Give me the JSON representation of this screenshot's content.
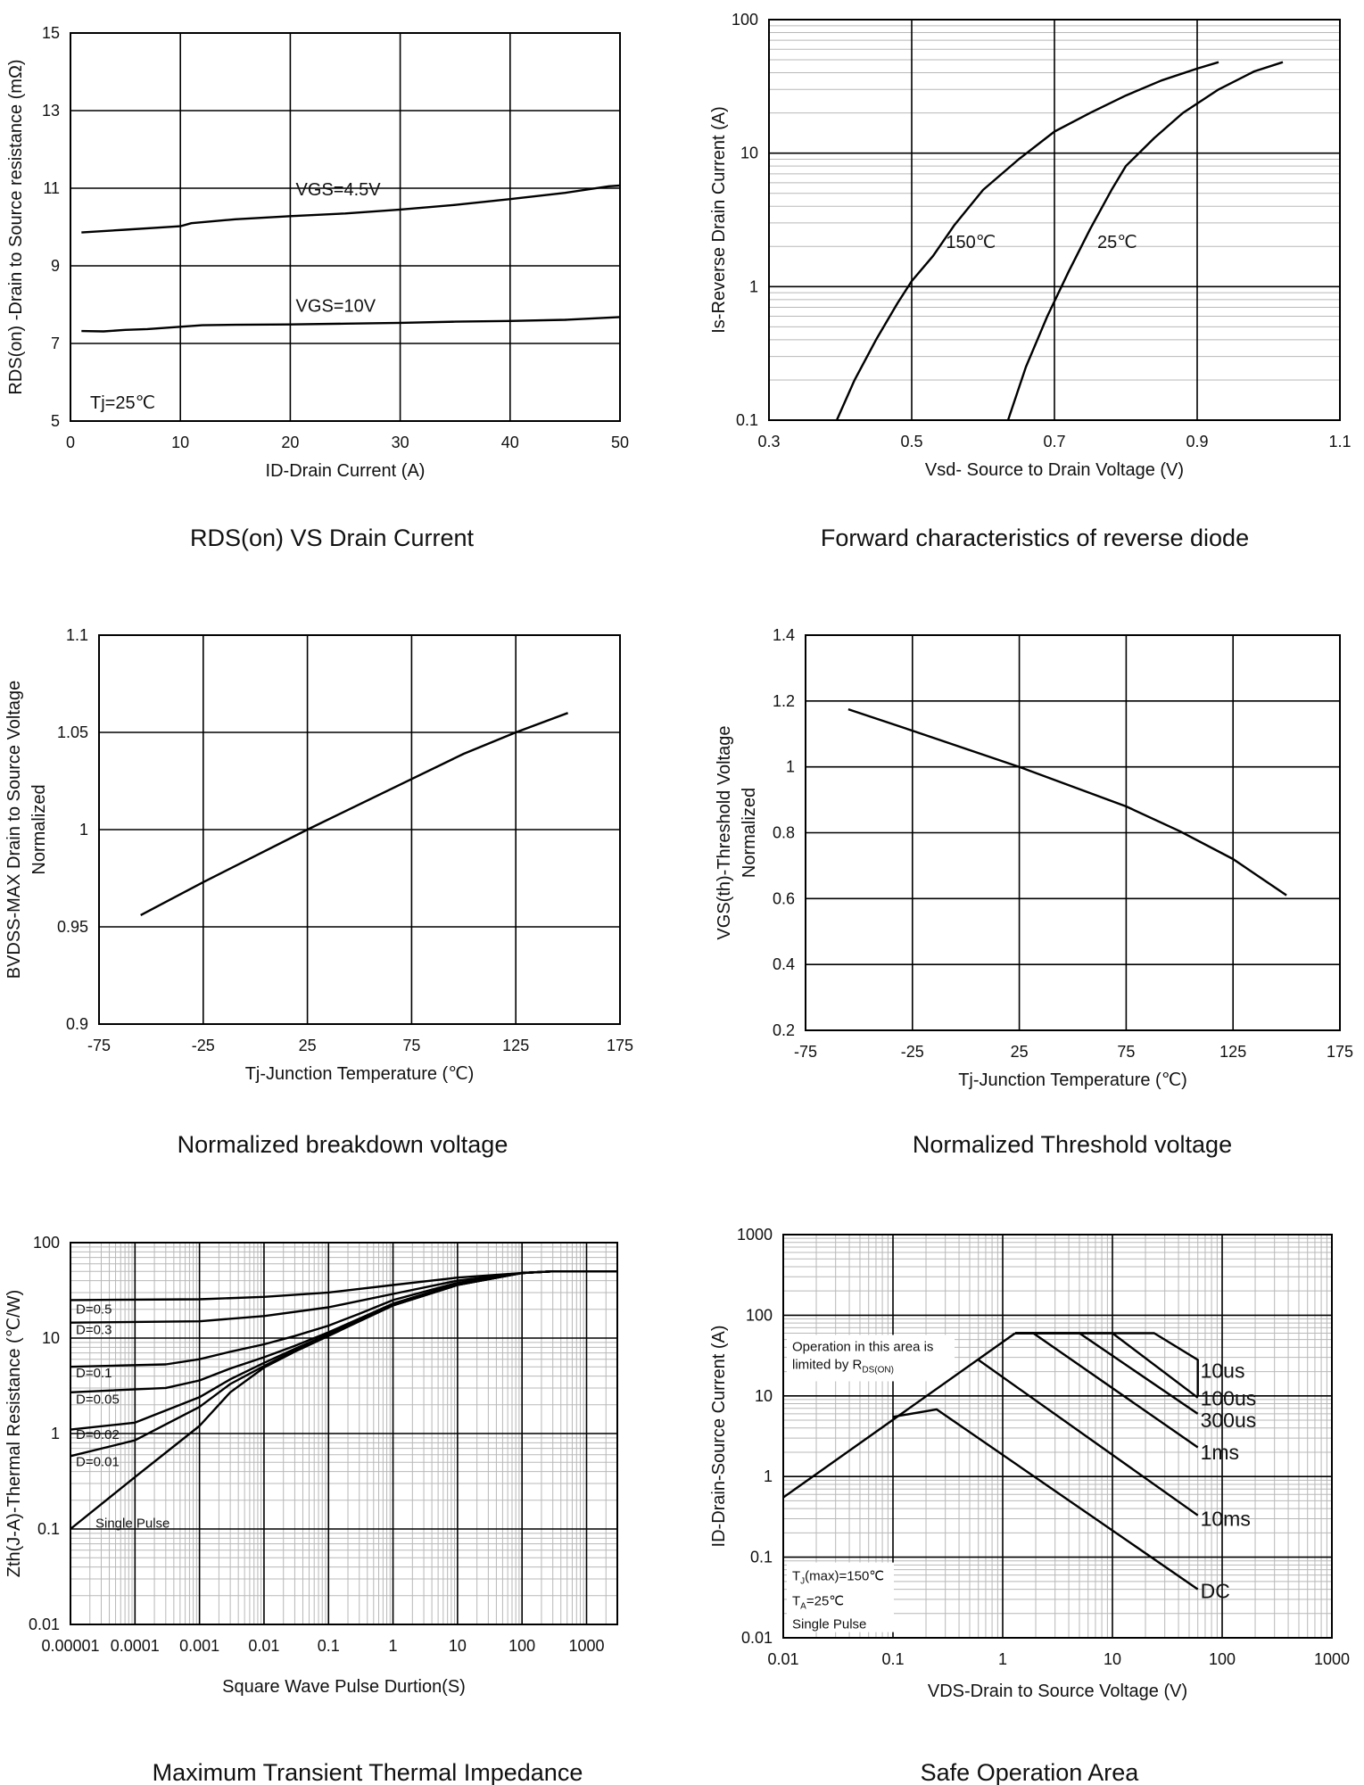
{
  "chart_data": [
    {
      "type": "line",
      "caption": "RDS(on) VS Drain Current",
      "xlabel": "ID-Drain Current (A)",
      "ylabel": "RDS(on) -Drain to Source resistance (mΩ)",
      "xlim": [
        0,
        50
      ],
      "ylim": [
        5,
        15
      ],
      "xticks": [
        "0",
        "10",
        "20",
        "30",
        "40",
        "50"
      ],
      "yticks": [
        "5",
        "7",
        "9",
        "11",
        "13",
        "15"
      ],
      "grid": true,
      "series": [
        {
          "name": "VGS=4.5V",
          "x": [
            1,
            5,
            10,
            11,
            15,
            20,
            25,
            30,
            35,
            40,
            45,
            49,
            50
          ],
          "y": [
            9.86,
            9.93,
            10.02,
            10.1,
            10.2,
            10.28,
            10.35,
            10.45,
            10.57,
            10.72,
            10.88,
            11.05,
            11.07
          ]
        },
        {
          "name": "VGS=10V",
          "x": [
            1,
            3,
            5,
            7,
            10,
            12,
            15,
            20,
            25,
            30,
            35,
            40,
            45,
            50
          ],
          "y": [
            7.32,
            7.31,
            7.35,
            7.37,
            7.43,
            7.47,
            7.48,
            7.49,
            7.51,
            7.53,
            7.56,
            7.58,
            7.61,
            7.68
          ]
        }
      ],
      "annotations": [
        "Tj=25℃"
      ]
    },
    {
      "type": "line",
      "caption": "Forward characteristics of reverse diode",
      "xlabel": "Vsd- Source to Drain Voltage (V)",
      "ylabel": "Is-Reverse Drain Current (A)",
      "xlim": [
        0.3,
        1.1
      ],
      "ylim": [
        0.1,
        100
      ],
      "yscale": "log",
      "xticks": [
        "0.3",
        "0.5",
        "0.7",
        "0.9",
        "1.1"
      ],
      "yticks": [
        "0.1",
        "1",
        "10",
        "100"
      ],
      "grid": true,
      "series": [
        {
          "name": "150℃",
          "x": [
            0.395,
            0.42,
            0.45,
            0.48,
            0.5,
            0.53,
            0.56,
            0.6,
            0.65,
            0.7,
            0.75,
            0.8,
            0.85,
            0.9,
            0.93
          ],
          "y": [
            0.1,
            0.2,
            0.4,
            0.75,
            1.1,
            1.7,
            2.9,
            5.3,
            9.0,
            14.5,
            20,
            27,
            35,
            43,
            48
          ]
        },
        {
          "name": "25℃",
          "x": [
            0.635,
            0.66,
            0.69,
            0.72,
            0.75,
            0.78,
            0.8,
            0.84,
            0.88,
            0.93,
            0.98,
            1.02
          ],
          "y": [
            0.1,
            0.25,
            0.6,
            1.3,
            2.7,
            5.3,
            8.0,
            13,
            20,
            30,
            41,
            48
          ]
        }
      ]
    },
    {
      "type": "line",
      "caption": "Normalized breakdown voltage",
      "xlabel": "Tj-Junction Temperature (℃)",
      "ylabel_lines": [
        "BVDSS-MAX Drain to Source Voltage",
        "Normalized"
      ],
      "xlim": [
        -75,
        175
      ],
      "ylim": [
        0.9,
        1.1
      ],
      "xticks": [
        "-75",
        "-25",
        "25",
        "75",
        "125",
        "175"
      ],
      "yticks": [
        "0.9",
        "0.95",
        "1",
        "1.05",
        "1.1"
      ],
      "grid": true,
      "series": [
        {
          "x": [
            -55,
            -25,
            25,
            75,
            100,
            125,
            150
          ],
          "y": [
            0.956,
            0.973,
            1.0,
            1.026,
            1.039,
            1.05,
            1.06
          ]
        }
      ]
    },
    {
      "type": "line",
      "caption": "Normalized Threshold voltage",
      "xlabel": "Tj-Junction Temperature (℃)",
      "ylabel_lines": [
        "VGS(th)-Threshold Voltage",
        "Normalized"
      ],
      "xlim": [
        -75,
        175
      ],
      "ylim": [
        0.2,
        1.4
      ],
      "xticks": [
        "-75",
        "-25",
        "25",
        "75",
        "125",
        "175"
      ],
      "yticks": [
        "0.2",
        "0.4",
        "0.6",
        "0.8",
        "1",
        "1.2",
        "1.4"
      ],
      "grid": true,
      "series": [
        {
          "x": [
            -55,
            -25,
            25,
            75,
            100,
            125,
            150
          ],
          "y": [
            1.175,
            1.11,
            1.0,
            0.88,
            0.805,
            0.72,
            0.61
          ]
        }
      ]
    },
    {
      "type": "line",
      "caption": "Maximum Transient Thermal Impedance",
      "xlabel": "Square Wave Pulse Durtion(S)",
      "ylabel": "Zth(J-A)-Thermal Resistance (℃/W)",
      "xlim": [
        1e-05,
        3000
      ],
      "ylim": [
        0.01,
        100
      ],
      "xscale": "log",
      "yscale": "log",
      "xticks": [
        "0.00001",
        "0.0001",
        "0.001",
        "0.01",
        "0.1",
        "1",
        "10",
        "100",
        "1000"
      ],
      "yticks": [
        "0.01",
        "0.1",
        "1",
        "10",
        "100"
      ],
      "grid": true,
      "series": [
        {
          "name": "D=0.5",
          "x": [
            1e-05,
            0.001,
            0.01,
            0.1,
            1,
            10,
            100,
            300,
            3000
          ],
          "y": [
            25,
            25.5,
            27,
            30,
            36,
            43,
            48,
            50,
            50
          ]
        },
        {
          "name": "D=0.3",
          "x": [
            1e-05,
            0.001,
            0.01,
            0.1,
            1,
            10,
            100,
            300,
            3000
          ],
          "y": [
            14.5,
            15,
            17,
            21,
            29,
            40,
            48,
            50,
            50
          ]
        },
        {
          "name": "D=0.1",
          "x": [
            1e-05,
            0.0003,
            0.001,
            0.003,
            0.01,
            0.03,
            0.1,
            0.3,
            1,
            10,
            100,
            300,
            3000
          ],
          "y": [
            5,
            5.3,
            6,
            7.2,
            8.6,
            10.5,
            13.5,
            18,
            25,
            38,
            48,
            50,
            50
          ]
        },
        {
          "name": "D=0.05",
          "x": [
            1e-05,
            0.0003,
            0.001,
            0.003,
            0.01,
            0.03,
            0.1,
            0.3,
            1,
            10,
            100,
            300,
            3000
          ],
          "y": [
            2.7,
            3.0,
            3.6,
            4.8,
            6.3,
            8.3,
            11.5,
            16,
            23,
            37,
            48,
            50,
            50
          ]
        },
        {
          "name": "D=0.02",
          "x": [
            1e-05,
            0.0001,
            0.001,
            0.003,
            0.01,
            0.03,
            0.1,
            0.3,
            1,
            10,
            100,
            300,
            3000
          ],
          "y": [
            1.1,
            1.3,
            2.4,
            3.7,
            5.5,
            7.7,
            11,
            15.5,
            22,
            36,
            48,
            50,
            50
          ]
        },
        {
          "name": "D=0.01",
          "x": [
            1e-05,
            0.0001,
            0.001,
            0.003,
            0.01,
            0.03,
            0.1,
            0.3,
            1,
            10,
            100,
            300,
            3000
          ],
          "y": [
            0.58,
            0.85,
            1.9,
            3.3,
            5.1,
            7.4,
            10.7,
            15,
            22,
            36,
            48,
            50,
            50
          ]
        },
        {
          "name": "Single Pulse",
          "x": [
            1e-05,
            0.0001,
            0.001,
            0.003,
            0.01,
            0.03,
            0.1,
            0.3,
            1,
            10,
            100,
            300,
            3000
          ],
          "y": [
            0.1,
            0.35,
            1.2,
            2.7,
            4.9,
            7.2,
            10.5,
            15,
            22,
            36,
            48,
            50,
            50
          ]
        }
      ]
    },
    {
      "type": "line",
      "caption": "Safe Operation Area",
      "xlabel": "VDS-Drain to Source Voltage (V)",
      "ylabel": "ID-Drain-Source Current (A)",
      "xlim": [
        0.01,
        1000
      ],
      "ylim": [
        0.01,
        1000
      ],
      "xscale": "log",
      "yscale": "log",
      "xticks": [
        "0.01",
        "0.1",
        "1",
        "10",
        "100",
        "1000"
      ],
      "yticks": [
        "0.01",
        "0.1",
        "1",
        "10",
        "100",
        "1000"
      ],
      "grid": true,
      "series": [
        {
          "name": "10us",
          "x": [
            1.3,
            24,
            60,
            60
          ],
          "y": [
            60,
            60,
            28,
            10
          ]
        },
        {
          "name": "100us",
          "x": [
            1.3,
            10,
            60
          ],
          "y": [
            60,
            60,
            9.5
          ]
        },
        {
          "name": "300us",
          "x": [
            1.3,
            5,
            60
          ],
          "y": [
            60,
            60,
            6
          ]
        },
        {
          "name": "1ms",
          "x": [
            1.3,
            1.9,
            60
          ],
          "y": [
            60,
            60,
            2.3
          ]
        },
        {
          "name": "10ms",
          "x": [
            0.6,
            60
          ],
          "y": [
            28,
            0.33
          ]
        },
        {
          "name": "DC",
          "x": [
            0.1,
            0.25,
            60
          ],
          "y": [
            5.5,
            6.8,
            0.04
          ]
        },
        {
          "name": "RDS(ON) limit",
          "x": [
            0.01,
            1.3
          ],
          "y": [
            0.55,
            60
          ]
        }
      ],
      "annotations": {
        "region_line1": "Operation in this area is",
        "region_line2_prefix": "limited by R",
        "region_line2_sub": "DS(ON)",
        "tj_prefix": "T",
        "tj_sub": "J",
        "tj_suffix": "(max)=150℃",
        "ta_prefix": "T",
        "ta_sub": "A",
        "ta_suffix": "=25℃",
        "pulse": "Single Pulse"
      }
    }
  ]
}
